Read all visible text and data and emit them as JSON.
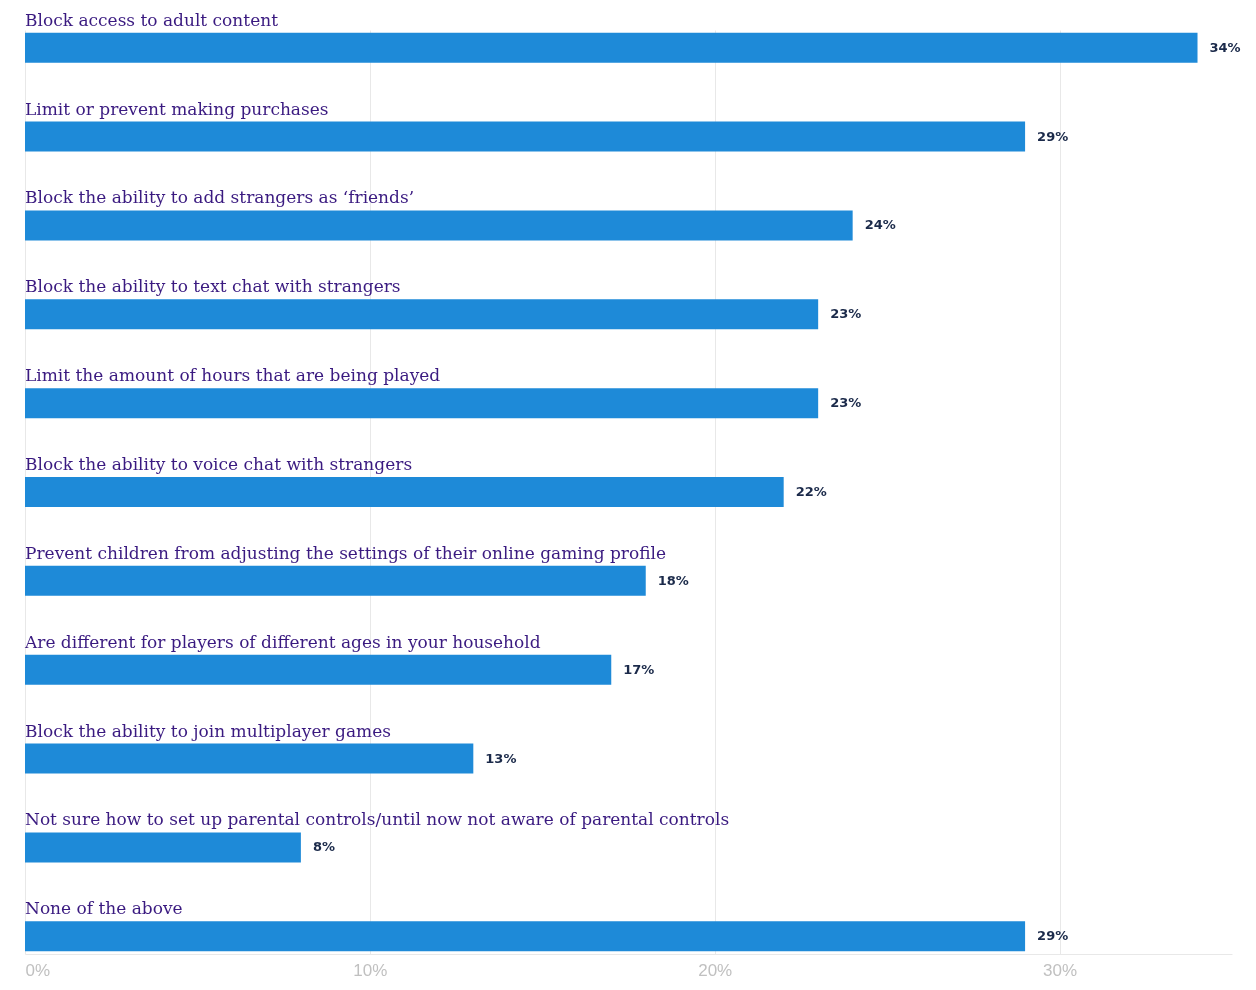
{
  "chart_data": {
    "type": "bar",
    "orientation": "horizontal",
    "categories": [
      "Block access to adult content",
      "Limit or prevent making purchases",
      "Block the ability to add strangers as ‘friends’",
      "Block the ability to text chat with strangers",
      "Limit the amount of hours that are being played",
      "Block the ability to voice chat with strangers",
      "Prevent children from adjusting the settings of their online gaming profile",
      "Are different for players of different ages in your household",
      "Block the ability to join multiplayer games",
      "Not sure how to set up parental controls/until now not aware of parental controls",
      "None of the above"
    ],
    "values": [
      34,
      29,
      24,
      23,
      23,
      22,
      18,
      17,
      13,
      8,
      29
    ],
    "value_labels": [
      "34%",
      "29%",
      "24%",
      "23%",
      "23%",
      "22%",
      "18%",
      "17%",
      "13%",
      "8%",
      "29%"
    ],
    "color": "#1e8ad8",
    "xlim": [
      0,
      35
    ],
    "xticks": [
      {
        "value": 0,
        "label": "0%"
      },
      {
        "value": 10,
        "label": "10%"
      },
      {
        "value": 20,
        "label": "20%"
      },
      {
        "value": 30,
        "label": "30%"
      }
    ],
    "grid": "x"
  }
}
